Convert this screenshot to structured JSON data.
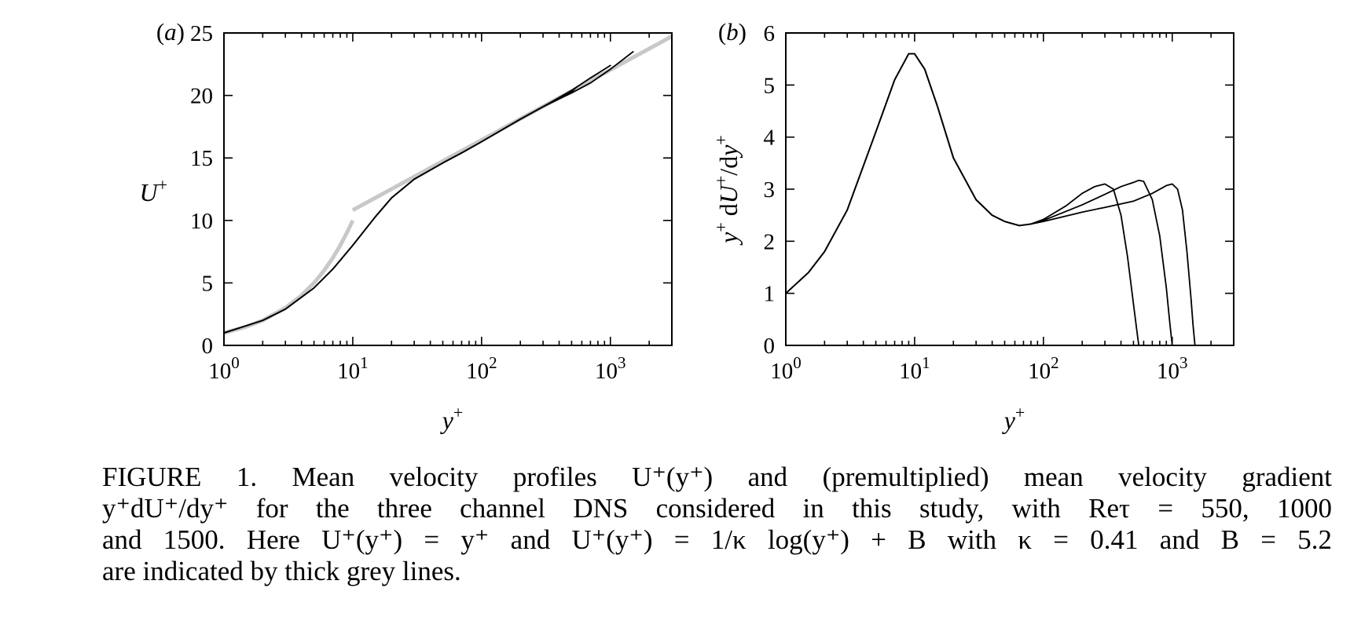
{
  "chart_data": [
    {
      "type": "line",
      "panel_label": "(a)",
      "xlabel": "y+",
      "ylabel": "U+",
      "x_scale": "log",
      "xlim": [
        1,
        3000
      ],
      "ylim": [
        0,
        25
      ],
      "x_ticks": [
        1,
        10,
        100,
        1000
      ],
      "x_tick_labels": [
        "10^0",
        "10^1",
        "10^2",
        "10^3"
      ],
      "y_ticks": [
        0,
        5,
        10,
        15,
        20,
        25
      ],
      "y_tick_labels": [
        "0",
        "5",
        "10",
        "15",
        "20",
        "25"
      ],
      "grid": false,
      "series": [
        {
          "color": "#000000",
          "x": [
            1,
            2,
            3,
            5,
            7,
            10,
            15,
            20,
            30,
            50,
            70,
            100,
            200,
            300,
            500,
            550
          ],
          "y": [
            1.0,
            2.0,
            2.9,
            4.6,
            6.1,
            8.0,
            10.3,
            11.8,
            13.3,
            14.6,
            15.4,
            16.3,
            18.1,
            19.1,
            20.3,
            20.7
          ]
        },
        {
          "color": "#000000",
          "x": [
            1,
            2,
            3,
            5,
            7,
            10,
            15,
            20,
            30,
            50,
            70,
            100,
            200,
            300,
            500,
            700,
            1000
          ],
          "y": [
            1.0,
            2.0,
            2.9,
            4.6,
            6.1,
            8.0,
            10.3,
            11.8,
            13.3,
            14.6,
            15.4,
            16.3,
            18.1,
            19.1,
            20.4,
            21.4,
            22.4
          ]
        },
        {
          "color": "#000000",
          "x": [
            1,
            2,
            3,
            5,
            7,
            10,
            15,
            20,
            30,
            50,
            70,
            100,
            200,
            300,
            500,
            700,
            1000,
            1500
          ],
          "y": [
            1.0,
            2.0,
            2.9,
            4.6,
            6.1,
            8.0,
            10.3,
            11.8,
            13.3,
            14.6,
            15.4,
            16.3,
            18.1,
            19.1,
            20.2,
            21.0,
            22.1,
            23.5
          ]
        },
        {
          "color": "#c8c8c8",
          "x": [
            1,
            1.5,
            2,
            3,
            4,
            5,
            6,
            7,
            8,
            9,
            10
          ],
          "y": [
            1,
            1.5,
            2,
            3,
            4,
            5,
            6,
            7,
            8,
            9,
            10
          ]
        },
        {
          "color": "#c8c8c8",
          "x": [
            10,
            3000
          ],
          "y": [
            10.82,
            24.73
          ]
        }
      ]
    },
    {
      "type": "line",
      "panel_label": "(b)",
      "xlabel": "y+",
      "ylabel": "y+ dU+/dy+",
      "x_scale": "log",
      "xlim": [
        1,
        3000
      ],
      "ylim": [
        0,
        6
      ],
      "x_ticks": [
        1,
        10,
        100,
        1000
      ],
      "x_tick_labels": [
        "10^0",
        "10^1",
        "10^2",
        "10^3"
      ],
      "y_ticks": [
        0,
        1,
        2,
        3,
        4,
        5,
        6
      ],
      "y_tick_labels": [
        "0",
        "1",
        "2",
        "3",
        "4",
        "5",
        "6"
      ],
      "grid": false,
      "series": [
        {
          "color": "#000000",
          "x": [
            1,
            1.5,
            2,
            3,
            5,
            7,
            9,
            10,
            12,
            15,
            20,
            30,
            40,
            50,
            65,
            80,
            100,
            150,
            200,
            250,
            300,
            350,
            400,
            450,
            500,
            530,
            550
          ],
          "y": [
            1.0,
            1.4,
            1.8,
            2.6,
            4.1,
            5.1,
            5.6,
            5.6,
            5.3,
            4.6,
            3.6,
            2.8,
            2.5,
            2.38,
            2.3,
            2.33,
            2.42,
            2.68,
            2.92,
            3.05,
            3.1,
            3.0,
            2.5,
            1.7,
            0.8,
            0.3,
            0
          ]
        },
        {
          "color": "#000000",
          "x": [
            1,
            1.5,
            2,
            3,
            5,
            7,
            9,
            10,
            12,
            15,
            20,
            30,
            40,
            50,
            65,
            80,
            100,
            200,
            300,
            400,
            500,
            550,
            600,
            700,
            800,
            900,
            960,
            1000
          ],
          "y": [
            1.0,
            1.4,
            1.8,
            2.6,
            4.1,
            5.1,
            5.6,
            5.6,
            5.3,
            4.6,
            3.6,
            2.8,
            2.5,
            2.38,
            2.3,
            2.33,
            2.4,
            2.7,
            2.9,
            3.05,
            3.13,
            3.17,
            3.15,
            2.8,
            2.1,
            1.1,
            0.4,
            0
          ]
        },
        {
          "color": "#000000",
          "x": [
            1,
            1.5,
            2,
            3,
            5,
            7,
            9,
            10,
            12,
            15,
            20,
            30,
            40,
            50,
            65,
            80,
            100,
            200,
            300,
            500,
            700,
            900,
            1000,
            1100,
            1200,
            1300,
            1400,
            1450,
            1500
          ],
          "y": [
            1.0,
            1.4,
            1.8,
            2.6,
            4.1,
            5.1,
            5.6,
            5.6,
            5.3,
            4.6,
            3.6,
            2.8,
            2.5,
            2.38,
            2.3,
            2.33,
            2.38,
            2.56,
            2.65,
            2.77,
            2.92,
            3.07,
            3.1,
            3.0,
            2.6,
            1.8,
            0.9,
            0.4,
            0
          ]
        }
      ]
    }
  ],
  "caption": {
    "line1": "FIGURE 1. Mean velocity profiles U⁺(y⁺) and (premultiplied) mean velocity gradient",
    "line2": "y⁺dU⁺/dy⁺  for the three channel DNS considered in this study, with Reτ = 550, 1000",
    "line3": "and 1500. Here U⁺(y⁺) = y⁺ and U⁺(y⁺) = 1/κ log(y⁺) + B with κ = 0.41 and B = 5.2",
    "line4": "are indicated by thick grey lines."
  }
}
